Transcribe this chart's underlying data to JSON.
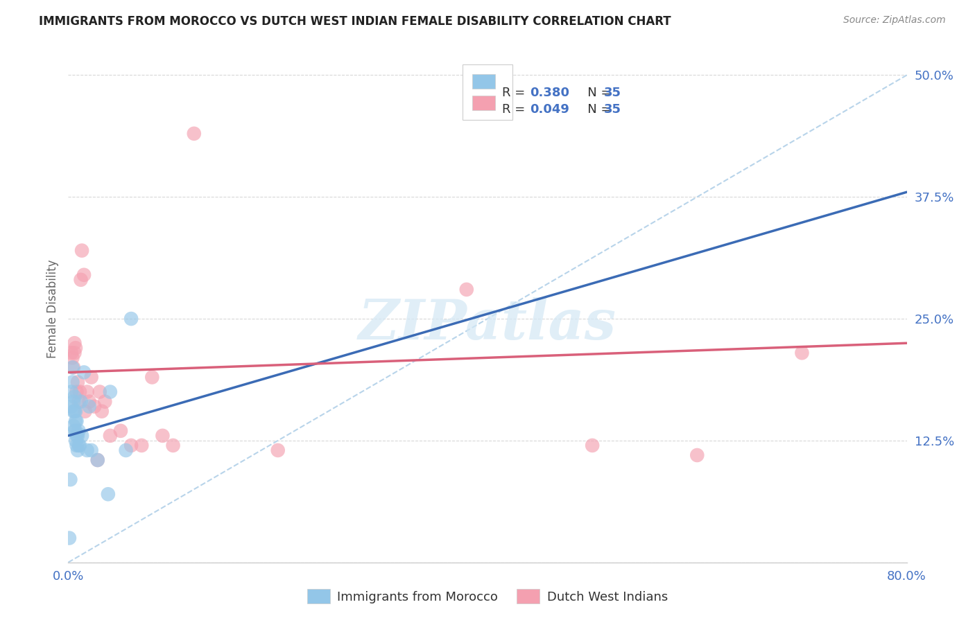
{
  "title": "IMMIGRANTS FROM MOROCCO VS DUTCH WEST INDIAN FEMALE DISABILITY CORRELATION CHART",
  "source": "Source: ZipAtlas.com",
  "ylabel": "Female Disability",
  "xlim": [
    0.0,
    0.8
  ],
  "ylim": [
    0.0,
    0.52
  ],
  "ytick_vals": [
    0.0,
    0.125,
    0.25,
    0.375,
    0.5
  ],
  "ytick_labels": [
    "",
    "12.5%",
    "25.0%",
    "37.5%",
    "50.0%"
  ],
  "xtick_vals": [
    0.0,
    0.8
  ],
  "xtick_labels": [
    "0.0%",
    "80.0%"
  ],
  "r_morocco": 0.38,
  "n_morocco": 35,
  "r_dutch": 0.049,
  "n_dutch": 35,
  "blue_scatter_color": "#93c6e8",
  "pink_scatter_color": "#f4a0b0",
  "blue_line_color": "#3b6bb5",
  "pink_line_color": "#d9607a",
  "dashed_line_color": "#b8d4ea",
  "legend_label_morocco": "Immigrants from Morocco",
  "legend_label_dutch": "Dutch West Indians",
  "legend_r_color": "#4472c4",
  "legend_text_color": "#333333",
  "title_color": "#222222",
  "source_color": "#888888",
  "ylabel_color": "#666666",
  "tick_color": "#4472c4",
  "watermark_text": "ZIPatlas",
  "watermark_color": "#d4e8f5",
  "grid_color": "#d8d8d8",
  "morocco_x": [
    0.001,
    0.002,
    0.003,
    0.003,
    0.004,
    0.004,
    0.005,
    0.005,
    0.005,
    0.006,
    0.006,
    0.006,
    0.007,
    0.007,
    0.007,
    0.007,
    0.008,
    0.008,
    0.008,
    0.009,
    0.009,
    0.01,
    0.01,
    0.011,
    0.012,
    0.013,
    0.015,
    0.018,
    0.02,
    0.022,
    0.028,
    0.038,
    0.04,
    0.055,
    0.06
  ],
  "morocco_y": [
    0.025,
    0.085,
    0.16,
    0.175,
    0.185,
    0.2,
    0.14,
    0.155,
    0.165,
    0.135,
    0.155,
    0.17,
    0.125,
    0.135,
    0.145,
    0.155,
    0.12,
    0.13,
    0.145,
    0.115,
    0.13,
    0.12,
    0.135,
    0.12,
    0.165,
    0.13,
    0.195,
    0.115,
    0.16,
    0.115,
    0.105,
    0.07,
    0.175,
    0.115,
    0.25
  ],
  "dutch_x": [
    0.003,
    0.004,
    0.005,
    0.006,
    0.006,
    0.007,
    0.008,
    0.009,
    0.01,
    0.011,
    0.012,
    0.013,
    0.015,
    0.016,
    0.018,
    0.02,
    0.022,
    0.025,
    0.028,
    0.03,
    0.032,
    0.035,
    0.04,
    0.05,
    0.06,
    0.07,
    0.08,
    0.09,
    0.1,
    0.12,
    0.2,
    0.38,
    0.5,
    0.6,
    0.7
  ],
  "dutch_y": [
    0.215,
    0.21,
    0.2,
    0.215,
    0.225,
    0.22,
    0.175,
    0.185,
    0.165,
    0.175,
    0.29,
    0.32,
    0.295,
    0.155,
    0.175,
    0.165,
    0.19,
    0.16,
    0.105,
    0.175,
    0.155,
    0.165,
    0.13,
    0.135,
    0.12,
    0.12,
    0.19,
    0.13,
    0.12,
    0.44,
    0.115,
    0.28,
    0.12,
    0.11,
    0.215
  ],
  "blue_line_x0": 0.0,
  "blue_line_y0": 0.13,
  "blue_line_x1": 0.8,
  "blue_line_y1": 0.38,
  "pink_line_x0": 0.0,
  "pink_line_y0": 0.195,
  "pink_line_x1": 0.8,
  "pink_line_y1": 0.225
}
